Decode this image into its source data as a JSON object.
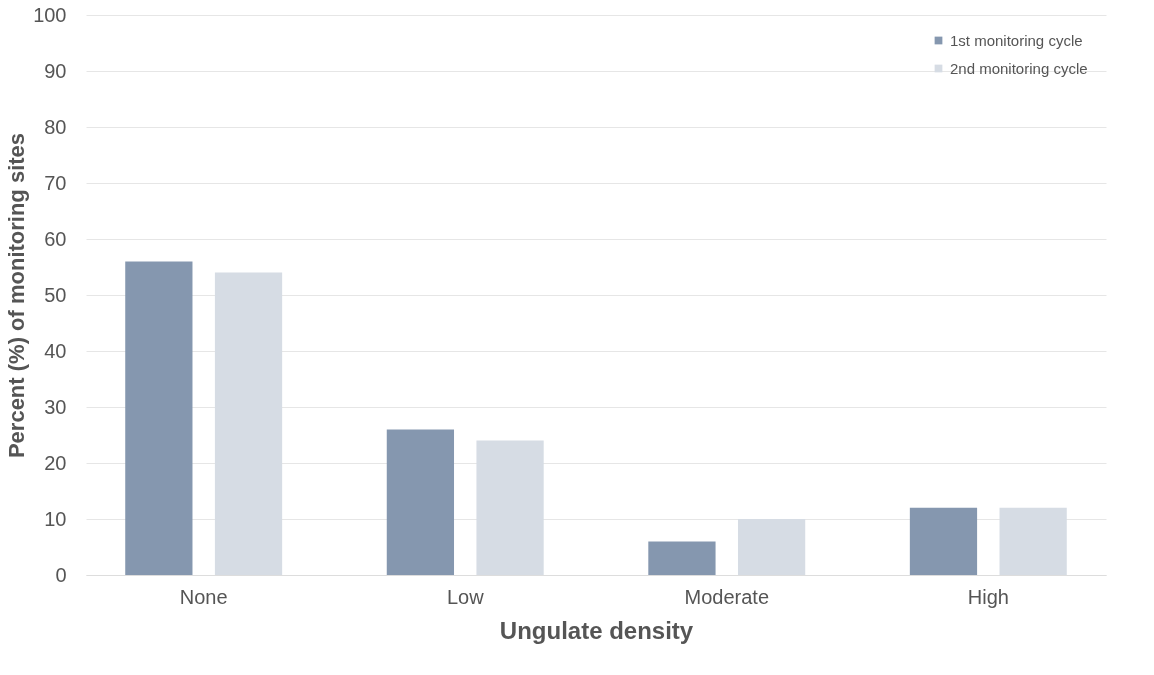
{
  "chart_data": {
    "type": "bar",
    "xlabel": "Ungulate density",
    "ylabel": "Percent (%) of monitoring sites",
    "categories": [
      "None",
      "Low",
      "Moderate",
      "High"
    ],
    "series": [
      {
        "name": "1st monitoring cycle",
        "color": "#8597af",
        "values": [
          56,
          26,
          6,
          12
        ]
      },
      {
        "name": "2nd monitoring cycle",
        "color": "#d6dce4",
        "values": [
          54,
          24,
          10,
          12
        ]
      }
    ],
    "ylim": [
      0,
      100
    ],
    "yticks": [
      0,
      10,
      20,
      30,
      40,
      50,
      60,
      70,
      80,
      90,
      100
    ],
    "grid": "y",
    "legend": "top right"
  }
}
